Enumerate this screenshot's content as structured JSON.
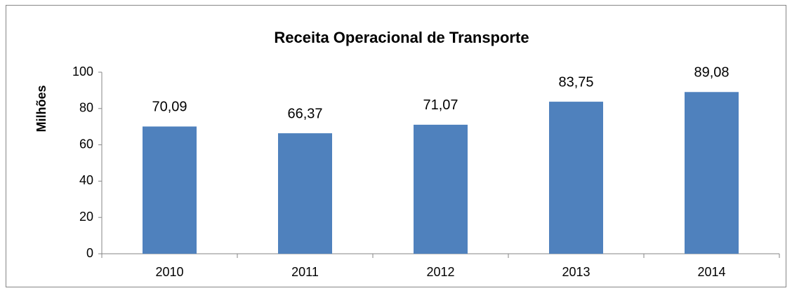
{
  "chart_data": {
    "type": "bar",
    "title": "Receita Operacional de Transporte",
    "y_label": "Milhões",
    "categories": [
      "2010",
      "2011",
      "2012",
      "2013",
      "2014"
    ],
    "values": [
      70.09,
      66.37,
      71.07,
      83.75,
      89.08
    ],
    "value_labels": [
      "70,09",
      "66,37",
      "71,07",
      "83,75",
      "89,08"
    ],
    "color": "#4f81bd",
    "ylim": [
      0,
      100
    ],
    "yticks": [
      0,
      20,
      40,
      60,
      80,
      100
    ],
    "grid": false
  }
}
